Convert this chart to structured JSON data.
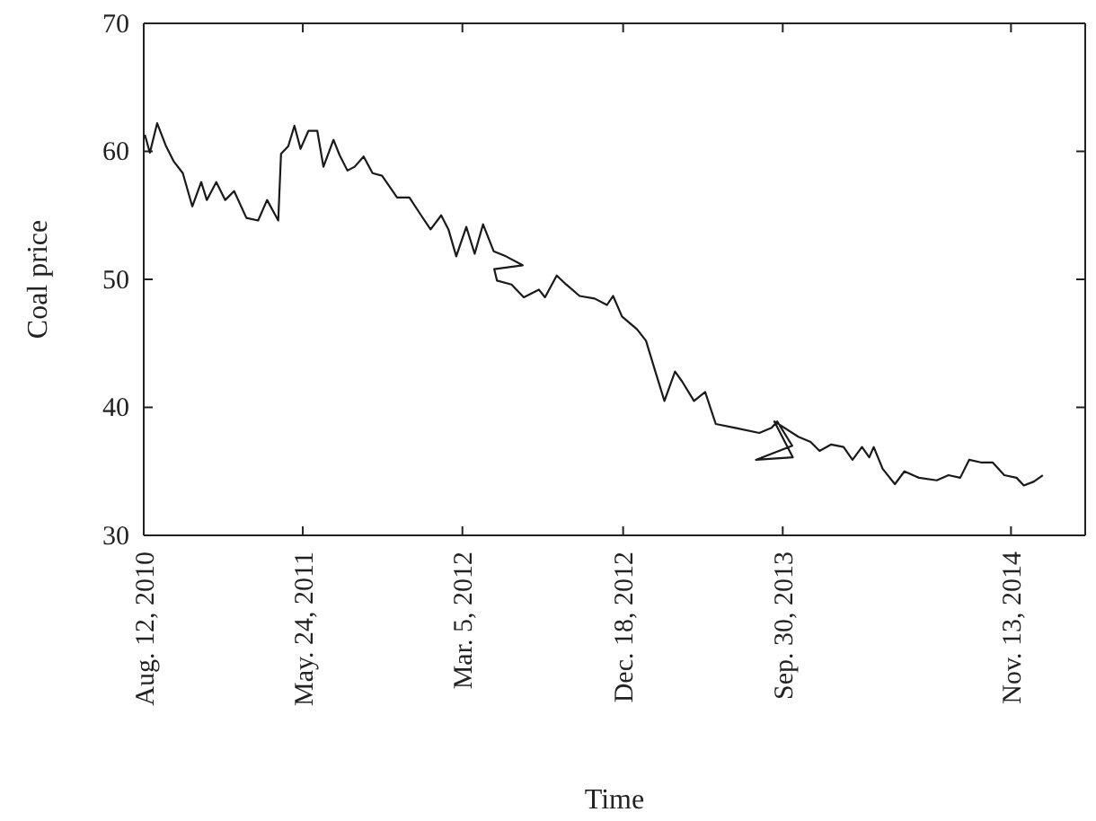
{
  "chart_data": {
    "type": "line",
    "xlabel": "Time",
    "ylabel": "Coal price",
    "xlim": [
      "2010-08-12",
      "2015-03-26"
    ],
    "xticks": [
      {
        "value": "2010-08-12",
        "label": "Aug. 12, 2010"
      },
      {
        "value": "2011-05-24",
        "label": "May. 24, 2011"
      },
      {
        "value": "2012-03-05",
        "label": "Mar. 5, 2012"
      },
      {
        "value": "2012-12-18",
        "label": "Dec. 18, 2012"
      },
      {
        "value": "2013-09-30",
        "label": "Sep. 30, 2013"
      },
      {
        "value": "2014-11-13",
        "label": "Nov. 13, 2014"
      }
    ],
    "ylim": [
      30,
      70
    ],
    "yticks": [
      30,
      40,
      50,
      60,
      70
    ],
    "grid": false,
    "series": [
      {
        "color": "#1a1a1a",
        "x": [
          "2010-08-14",
          "2010-08-23",
          "2010-09-05",
          "2010-09-21",
          "2010-10-05",
          "2010-10-21",
          "2010-11-07",
          "2010-11-23",
          "2010-12-03",
          "2010-12-20",
          "2011-01-05",
          "2011-01-21",
          "2011-02-12",
          "2011-03-05",
          "2011-03-21",
          "2011-04-10",
          "2011-04-15",
          "2011-04-28",
          "2011-05-09",
          "2011-05-20",
          "2011-06-03",
          "2011-06-19",
          "2011-06-30",
          "2011-07-18",
          "2011-07-29",
          "2011-08-12",
          "2011-08-25",
          "2011-09-10",
          "2011-09-26",
          "2011-10-13",
          "2011-11-09",
          "2011-12-01",
          "2011-12-22",
          "2012-01-08",
          "2012-01-27",
          "2012-02-09",
          "2012-02-23",
          "2012-03-12",
          "2012-03-27",
          "2012-04-11",
          "2012-04-30",
          "2012-05-22",
          "2012-06-21",
          "2012-05-01",
          "2012-05-06",
          "2012-06-01",
          "2012-06-23",
          "2012-07-20",
          "2012-07-31",
          "2012-08-21",
          "2012-09-07",
          "2012-10-01",
          "2012-10-28",
          "2012-11-19",
          "2012-11-30",
          "2012-12-16",
          "2013-01-12",
          "2013-01-28",
          "2013-02-13",
          "2013-03-02",
          "2013-03-21",
          "2013-04-03",
          "2013-04-24",
          "2013-05-14",
          "2013-06-02",
          "2013-07-07",
          "2013-08-19",
          "2013-09-10",
          "2013-09-20",
          "2013-10-17",
          "2013-08-13",
          "2013-10-18",
          "2013-09-15",
          "2013-10-28",
          "2013-11-19",
          "2013-12-05",
          "2013-12-26",
          "2014-01-17",
          "2014-02-02",
          "2014-02-19",
          "2014-03-04",
          "2014-03-12",
          "2014-03-28",
          "2014-04-19",
          "2014-05-06",
          "2014-06-01",
          "2014-07-03",
          "2014-07-24",
          "2014-08-14",
          "2014-08-30",
          "2014-09-20",
          "2014-10-11",
          "2014-11-01",
          "2014-11-23",
          "2014-12-06",
          "2014-12-24",
          "2015-01-09"
        ],
        "values": [
          61.3,
          59.9,
          62.2,
          60.4,
          59.2,
          58.3,
          55.7,
          57.6,
          56.2,
          57.6,
          56.2,
          56.9,
          54.8,
          54.6,
          56.2,
          54.6,
          59.8,
          60.4,
          62.0,
          60.2,
          61.6,
          61.6,
          58.8,
          60.9,
          59.7,
          58.5,
          58.8,
          59.6,
          58.3,
          58.1,
          56.4,
          56.4,
          55.0,
          53.9,
          55.0,
          53.9,
          51.8,
          54.1,
          52.0,
          54.3,
          52.2,
          51.8,
          51.1,
          50.8,
          49.9,
          49.6,
          48.6,
          49.2,
          48.6,
          50.3,
          49.6,
          48.7,
          48.5,
          48.0,
          48.7,
          47.1,
          46.1,
          45.2,
          42.9,
          40.5,
          42.8,
          42.0,
          40.5,
          41.2,
          38.7,
          38.4,
          38.0,
          38.4,
          38.9,
          37.0,
          35.9,
          36.1,
          38.9,
          37.7,
          37.3,
          36.6,
          37.1,
          36.9,
          35.9,
          36.9,
          36.1,
          36.9,
          35.2,
          34.0,
          35.0,
          34.5,
          34.3,
          34.7,
          34.5,
          35.9,
          35.7,
          35.7,
          34.7,
          34.5,
          33.9,
          34.2,
          34.7
        ]
      }
    ]
  }
}
